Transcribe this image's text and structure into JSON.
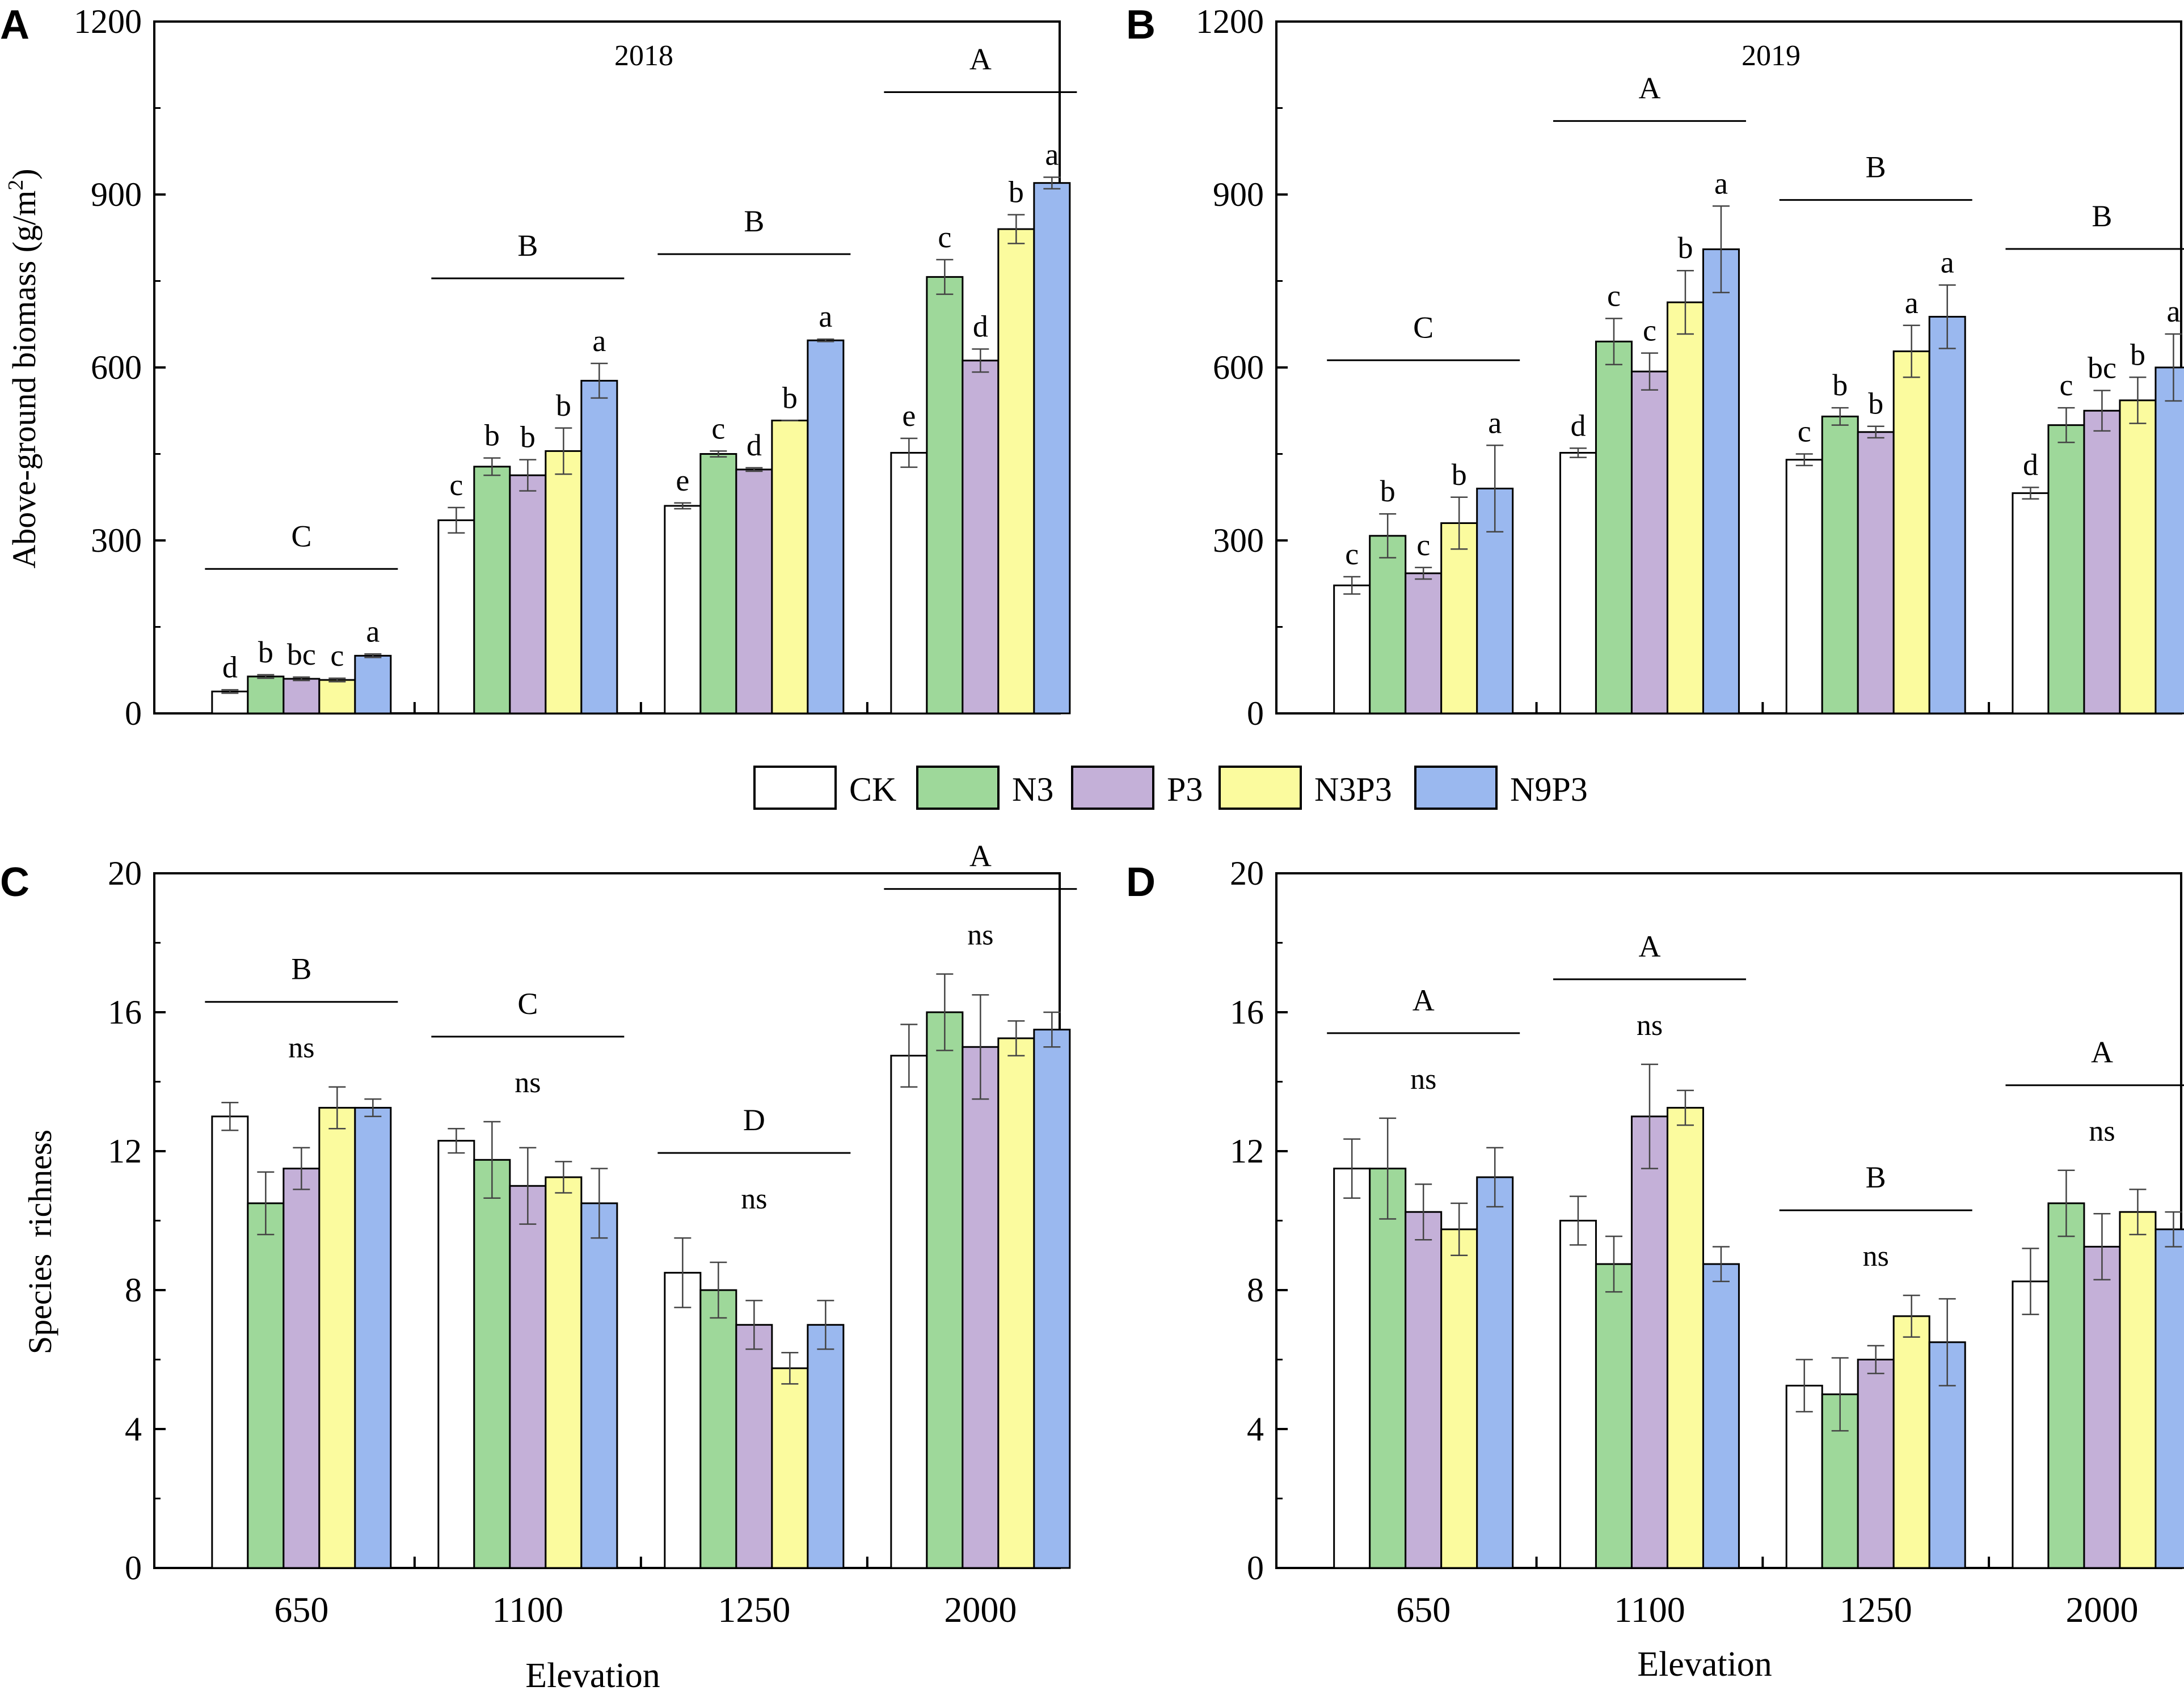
{
  "legend": [
    {
      "name": "CK",
      "color": "#ffffff"
    },
    {
      "name": "N3",
      "color": "#9ed89a"
    },
    {
      "name": "P3",
      "color": "#c4b0d8"
    },
    {
      "name": "N3P3",
      "color": "#fbfb9e"
    },
    {
      "name": "N9P3",
      "color": "#9ab8ef"
    }
  ],
  "chart_data": [
    {
      "panel": "A",
      "type": "bar",
      "title": "2018",
      "xlabel": "",
      "ylabel": "Above-ground biomass  (g/m²)",
      "ylim": [
        0,
        1200
      ],
      "yticks": [
        0,
        300,
        600,
        900,
        1200
      ],
      "categories": [
        "650",
        "1100",
        "1250",
        "2000"
      ],
      "series": [
        {
          "name": "CK",
          "values": [
            38,
            335,
            360,
            452
          ],
          "errors": [
            3,
            22,
            5,
            25
          ],
          "letters": [
            "d",
            "c",
            "e",
            "e"
          ]
        },
        {
          "name": "N3",
          "values": [
            64,
            428,
            450,
            757
          ],
          "errors": [
            3,
            15,
            5,
            30
          ],
          "letters": [
            "b",
            "b",
            "c",
            "c"
          ]
        },
        {
          "name": "P3",
          "values": [
            60,
            413,
            423,
            612
          ],
          "errors": [
            3,
            27,
            3,
            20
          ],
          "letters": [
            "bc",
            "b",
            "d",
            "d"
          ]
        },
        {
          "name": "N3P3",
          "values": [
            58,
            455,
            508,
            840
          ],
          "errors": [
            3,
            40,
            0,
            25
          ],
          "letters": [
            "c",
            "b",
            "b",
            "b"
          ]
        },
        {
          "name": "N9P3",
          "values": [
            100,
            577,
            647,
            920
          ],
          "errors": [
            3,
            30,
            2,
            10
          ],
          "letters": [
            "a",
            "a",
            "a",
            "a"
          ]
        }
      ],
      "group_letters": [
        "C",
        "B",
        "B",
        "A"
      ]
    },
    {
      "panel": "B",
      "type": "bar",
      "title": "2019",
      "xlabel": "",
      "ylabel": "",
      "ylim": [
        0,
        1200
      ],
      "yticks": [
        0,
        300,
        600,
        900,
        1200
      ],
      "categories": [
        "650",
        "1100",
        "1250",
        "2000"
      ],
      "series": [
        {
          "name": "CK",
          "values": [
            222,
            452,
            440,
            382
          ],
          "errors": [
            15,
            8,
            10,
            10
          ],
          "letters": [
            "c",
            "d",
            "c",
            "d"
          ]
        },
        {
          "name": "N3",
          "values": [
            308,
            645,
            515,
            500
          ],
          "errors": [
            38,
            40,
            15,
            30
          ],
          "letters": [
            "b",
            "c",
            "b",
            "c"
          ]
        },
        {
          "name": "P3",
          "values": [
            243,
            593,
            488,
            525
          ],
          "errors": [
            10,
            32,
            10,
            35
          ],
          "letters": [
            "c",
            "c",
            "b",
            "bc"
          ]
        },
        {
          "name": "N3P3",
          "values": [
            330,
            713,
            628,
            543
          ],
          "errors": [
            45,
            55,
            45,
            40
          ],
          "letters": [
            "b",
            "b",
            "a",
            "b"
          ]
        },
        {
          "name": "N9P3",
          "values": [
            390,
            805,
            688,
            600
          ],
          "errors": [
            75,
            75,
            55,
            58
          ],
          "letters": [
            "a",
            "a",
            "a",
            "a"
          ]
        }
      ],
      "group_letters": [
        "C",
        "A",
        "B",
        "B"
      ]
    },
    {
      "panel": "C",
      "type": "bar",
      "title": "",
      "xlabel": "Elevation",
      "ylabel": "Species  richness",
      "ylim": [
        0,
        20
      ],
      "yticks": [
        0,
        4,
        8,
        12,
        16,
        20
      ],
      "categories": [
        "650",
        "1100",
        "1250",
        "2000"
      ],
      "series": [
        {
          "name": "CK",
          "values": [
            13.0,
            12.3,
            8.5,
            14.75
          ],
          "errors": [
            0.4,
            0.35,
            1.0,
            0.9
          ]
        },
        {
          "name": "N3",
          "values": [
            10.5,
            11.75,
            8.0,
            16.0
          ],
          "errors": [
            0.9,
            1.1,
            0.8,
            1.1
          ]
        },
        {
          "name": "P3",
          "values": [
            11.5,
            11.0,
            7.0,
            15.0
          ],
          "errors": [
            0.6,
            1.1,
            0.7,
            1.5
          ]
        },
        {
          "name": "N3P3",
          "values": [
            13.25,
            11.25,
            5.75,
            15.25
          ],
          "errors": [
            0.6,
            0.45,
            0.45,
            0.5
          ]
        },
        {
          "name": "N9P3",
          "values": [
            13.25,
            10.5,
            7.0,
            15.5
          ],
          "errors": [
            0.25,
            1.0,
            0.7,
            0.5
          ]
        }
      ],
      "group_letters": [
        "B",
        "C",
        "D",
        "A"
      ],
      "ns_labels": [
        "ns",
        "ns",
        "ns",
        "ns"
      ]
    },
    {
      "panel": "D",
      "type": "bar",
      "title": "",
      "xlabel": "Elevation",
      "ylabel": "",
      "ylim": [
        0,
        20
      ],
      "yticks": [
        0,
        4,
        8,
        12,
        16,
        20
      ],
      "categories": [
        "650",
        "1100",
        "1250",
        "2000"
      ],
      "series": [
        {
          "name": "CK",
          "values": [
            11.5,
            10.0,
            5.25,
            8.25
          ],
          "errors": [
            0.85,
            0.7,
            0.75,
            0.95
          ]
        },
        {
          "name": "N3",
          "values": [
            11.5,
            8.75,
            5.0,
            10.5
          ],
          "errors": [
            1.45,
            0.8,
            1.05,
            0.95
          ]
        },
        {
          "name": "P3",
          "values": [
            10.25,
            13.0,
            6.0,
            9.25
          ],
          "errors": [
            0.8,
            1.5,
            0.4,
            0.95
          ]
        },
        {
          "name": "N3P3",
          "values": [
            9.75,
            13.25,
            7.25,
            10.25
          ],
          "errors": [
            0.75,
            0.5,
            0.6,
            0.65
          ]
        },
        {
          "name": "N9P3",
          "values": [
            11.25,
            8.75,
            6.5,
            9.75
          ],
          "errors": [
            0.85,
            0.5,
            1.25,
            0.5
          ]
        }
      ],
      "group_letters": [
        "A",
        "A",
        "B",
        "A"
      ],
      "ns_labels": [
        "ns",
        "ns",
        "ns",
        "ns"
      ]
    }
  ]
}
